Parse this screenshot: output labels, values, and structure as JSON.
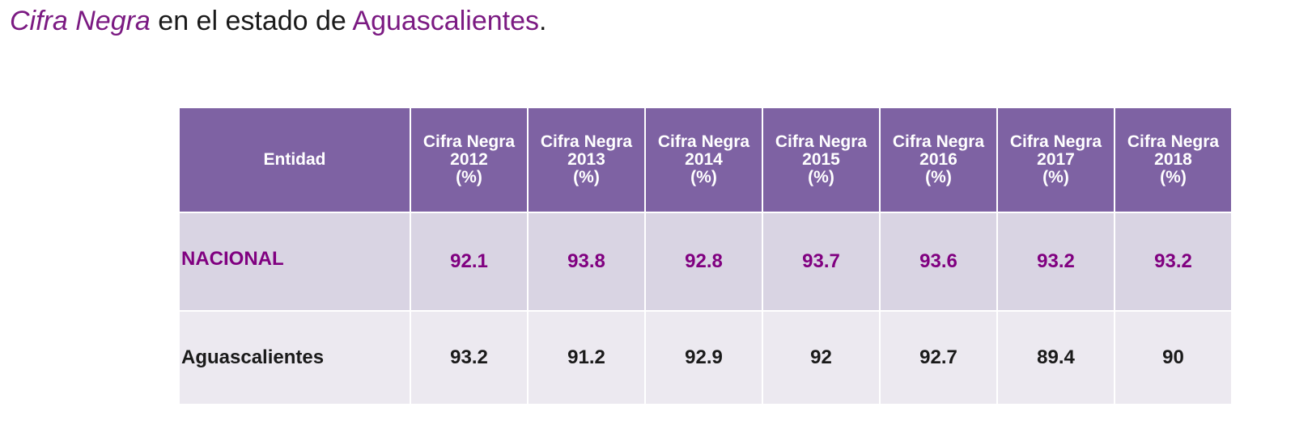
{
  "title": {
    "part1": "Cifra Negra",
    "part2": " en el estado de ",
    "part3": "Aguascalientes",
    "part4": "."
  },
  "table": {
    "entity_header": "Entidad",
    "columns": [
      {
        "line1": "Cifra Negra",
        "line2": "2012",
        "line3": "(%)"
      },
      {
        "line1": "Cifra Negra",
        "line2": "2013",
        "line3": "(%)"
      },
      {
        "line1": "Cifra Negra",
        "line2": "2014",
        "line3": "(%)"
      },
      {
        "line1": "Cifra Negra",
        "line2": "2015",
        "line3": "(%)"
      },
      {
        "line1": "Cifra Negra",
        "line2": "2016",
        "line3": "(%)"
      },
      {
        "line1": "Cifra Negra",
        "line2": "2017",
        "line3": "(%)"
      },
      {
        "line1": "Cifra Negra",
        "line2": "2018",
        "line3": "(%)"
      }
    ],
    "rows": [
      {
        "entity": "NACIONAL",
        "values": [
          "92.1",
          "93.8",
          "92.8",
          "93.7",
          "93.6",
          "93.2",
          "93.2"
        ]
      },
      {
        "entity": "Aguascalientes",
        "values": [
          "93.2",
          "91.2",
          "92.9",
          "92",
          "92.7",
          "89.4",
          "90"
        ]
      }
    ]
  },
  "colors": {
    "header_bg": "#7e62a3",
    "accent": "#800080",
    "row_nacional_bg": "#d9d4e3",
    "row_ags_bg": "#ece9f0"
  }
}
